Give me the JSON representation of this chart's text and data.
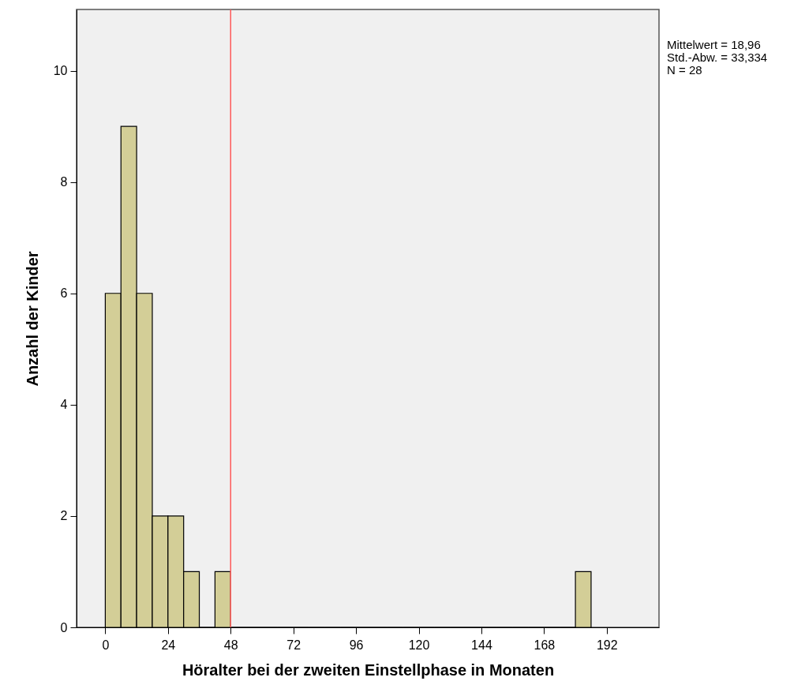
{
  "chart_data": {
    "type": "histogram",
    "xlabel": "Höralter bei der zweiten Einstellphase in Monaten",
    "ylabel": "Anzahl der Kinder",
    "bins": [
      0,
      6,
      12,
      18,
      24,
      30,
      36,
      42,
      48,
      54,
      60,
      66,
      72,
      78,
      84,
      90,
      96,
      102,
      108,
      114,
      120,
      126,
      132,
      138,
      144,
      150,
      156,
      162,
      168,
      174,
      180,
      186
    ],
    "values": [
      6,
      9,
      6,
      2,
      2,
      1,
      0,
      1,
      0,
      0,
      0,
      0,
      0,
      0,
      0,
      0,
      0,
      0,
      0,
      0,
      0,
      0,
      0,
      0,
      0,
      0,
      0,
      0,
      0,
      0,
      1
    ],
    "color": "#d3ce97",
    "xlim": [
      -11,
      212
    ],
    "xticks": [
      0,
      24,
      48,
      72,
      96,
      120,
      144,
      168,
      192
    ],
    "ylim": [
      0,
      11.1
    ],
    "yticks": [
      0,
      2,
      4,
      6,
      8,
      10
    ],
    "grid": false,
    "ref_lines": [
      {
        "axis": "x",
        "value": 48,
        "color": "#ff5a5a"
      }
    ],
    "annotations": [
      "Mittelwert = 18,96",
      "Std.-Abw. = 33,334",
      "N = 28"
    ]
  }
}
